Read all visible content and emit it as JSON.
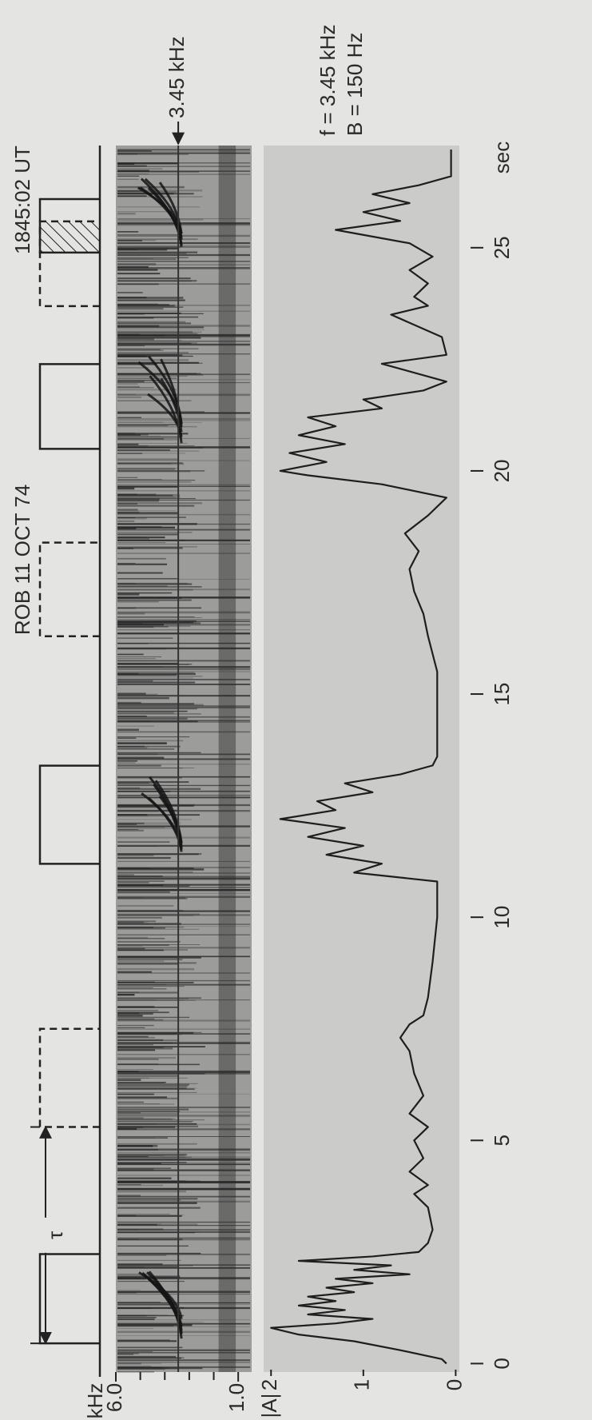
{
  "figure": {
    "title": "ROB 11 OCT 74",
    "time": "1845:02 UT"
  },
  "chart_data": [
    {
      "type": "pulses",
      "xlim": [
        -0.3,
        27.3
      ],
      "period_label": "τ",
      "period": [
        0.45,
        5.3
      ],
      "pulses": [
        {
          "start": 0.45,
          "end": 2.45,
          "style": "solid"
        },
        {
          "start": 5.3,
          "end": 7.5,
          "style": "dashed"
        },
        {
          "start": 11.2,
          "end": 13.4,
          "style": "solid"
        },
        {
          "start": 16.3,
          "end": 18.4,
          "style": "dashed"
        },
        {
          "start": 20.5,
          "end": 22.4,
          "style": "solid"
        },
        {
          "start": 23.7,
          "end": 25.6,
          "style": "dashed"
        },
        {
          "start": 24.9,
          "end": 26.1,
          "style": "solid"
        },
        {
          "start": 24.9,
          "end": 25.6,
          "style": "hatched"
        }
      ]
    },
    {
      "type": "spectrogram",
      "y_label": "kHz",
      "xlim": [
        -0.2,
        27.3
      ],
      "ylim": [
        0.45,
        6
      ],
      "yticks": [
        {
          "value": 6,
          "label": "6.0"
        },
        {
          "value": 1,
          "label": "1.0"
        }
      ],
      "minor_yticks": [
        2,
        3,
        4,
        5
      ],
      "marker": {
        "value": 3.45,
        "label": "3.45 kHz"
      }
    },
    {
      "type": "line",
      "y_label": "|A|",
      "x_label": "sec",
      "color": "#1e1e1e",
      "annotations": [
        "f = 3.45 kHz",
        "B = 150 Hz"
      ],
      "xlim": [
        -0.1,
        27.2
      ],
      "ylim": [
        -0.04,
        2.08
      ],
      "xticks": [
        0,
        5,
        10,
        15,
        20,
        25
      ],
      "yticks": [
        0,
        1,
        2
      ],
      "x": [
        0,
        0.1,
        0.3,
        0.5,
        0.65,
        0.8,
        0.9,
        1.0,
        1.1,
        1.2,
        1.3,
        1.4,
        1.5,
        1.6,
        1.7,
        1.8,
        1.9,
        2.0,
        2.1,
        2.2,
        2.3,
        2.4,
        2.5,
        2.7,
        3.0,
        3.5,
        3.8,
        4.0,
        4.3,
        4.6,
        5.0,
        5.3,
        5.6,
        6.0,
        6.5,
        7.0,
        7.3,
        7.6,
        7.8,
        8.2,
        9.0,
        10.0,
        10.8,
        11.0,
        11.2,
        11.4,
        11.6,
        11.8,
        12.0,
        12.2,
        12.4,
        12.6,
        12.8,
        13.0,
        13.2,
        13.4,
        13.6,
        14.5,
        15.5,
        16.3,
        16.8,
        17.3,
        17.8,
        18.2,
        18.6,
        19.0,
        19.4,
        19.7,
        19.9,
        20.0,
        20.2,
        20.4,
        20.6,
        20.8,
        21.0,
        21.2,
        21.4,
        21.6,
        21.8,
        22.0,
        22.4,
        22.6,
        23.0,
        23.5,
        23.7,
        23.9,
        24.2,
        24.5,
        24.8,
        25.1,
        25.4,
        25.6,
        25.8,
        26.0,
        26.2,
        26.4,
        26.6,
        26.8,
        27.2
      ],
      "values": [
        0.1,
        0.15,
        0.6,
        1.1,
        1.7,
        2.0,
        1.3,
        0.9,
        1.6,
        1.2,
        1.7,
        1.3,
        1.6,
        1.1,
        1.4,
        0.9,
        1.3,
        0.5,
        1.1,
        0.7,
        1.7,
        0.9,
        0.4,
        0.3,
        0.25,
        0.3,
        0.45,
        0.3,
        0.5,
        0.35,
        0.45,
        0.3,
        0.5,
        0.35,
        0.45,
        0.5,
        0.6,
        0.5,
        0.35,
        0.3,
        0.25,
        0.2,
        0.2,
        1.1,
        0.8,
        1.4,
        1.0,
        1.6,
        1.2,
        1.9,
        1.3,
        1.5,
        0.9,
        1.2,
        0.6,
        0.25,
        0.2,
        0.2,
        0.2,
        0.3,
        0.35,
        0.45,
        0.5,
        0.4,
        0.55,
        0.3,
        0.1,
        0.8,
        1.6,
        1.9,
        1.4,
        1.8,
        1.2,
        1.7,
        1.3,
        1.6,
        0.8,
        1.0,
        0.35,
        0.1,
        0.8,
        0.1,
        0.15,
        0.7,
        0.3,
        0.45,
        0.3,
        0.5,
        0.25,
        0.5,
        1.3,
        0.6,
        1.0,
        0.5,
        0.9,
        0.4,
        0.05,
        0.05,
        0.05
      ]
    }
  ]
}
